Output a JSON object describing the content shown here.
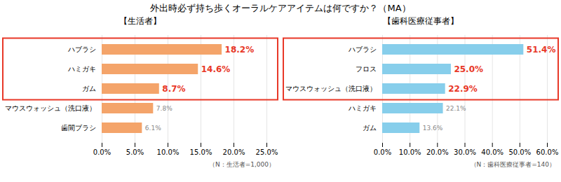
{
  "title": "外出時必ず持ち歩くオーラルケアアイテムは何ですか？（MA）",
  "chart_data": [
    {
      "type": "bar",
      "orientation": "horizontal",
      "title": "【生活者】",
      "categories": [
        "ハブラシ",
        "ハミガキ",
        "ガム",
        "マウスウォッシュ（洗口液）",
        "歯間ブラシ"
      ],
      "values": [
        18.2,
        14.6,
        8.7,
        7.8,
        6.1
      ],
      "value_labels": [
        "18.2%",
        "14.6%",
        "8.7%",
        "7.8%",
        "6.1%"
      ],
      "highlighted": [
        true,
        true,
        true,
        false,
        false
      ],
      "highlight_color": "#E83828",
      "color": "#F4A46A",
      "xlim": [
        0,
        25
      ],
      "xticks": [
        {
          "value": 0,
          "label": "0.0%"
        },
        {
          "value": 5,
          "label": "5.0%"
        },
        {
          "value": 10,
          "label": "10.0%"
        },
        {
          "value": 15,
          "label": "15.0%"
        },
        {
          "value": 20,
          "label": "20.0%"
        },
        {
          "value": 25,
          "label": "25.0%"
        }
      ],
      "grid": true,
      "data_labels": true,
      "annotations": [
        "（N：生活者=1,000）"
      ]
    },
    {
      "type": "bar",
      "orientation": "horizontal",
      "title": "【歯科医療従事者】",
      "categories": [
        "ハブラシ",
        "フロス",
        "マウスウォッシュ（洗口液）",
        "ハミガキ",
        "ガム"
      ],
      "values": [
        51.4,
        25.0,
        22.9,
        22.1,
        13.6
      ],
      "value_labels": [
        "51.4%",
        "25.0%",
        "22.9%",
        "22.1%",
        "13.6%"
      ],
      "highlighted": [
        true,
        true,
        true,
        false,
        false
      ],
      "highlight_color": "#E83828",
      "color": "#87CEEB",
      "xlim": [
        0,
        60
      ],
      "xticks": [
        {
          "value": 0,
          "label": "0.0%"
        },
        {
          "value": 10,
          "label": "10.0%"
        },
        {
          "value": 20,
          "label": "20.0%"
        },
        {
          "value": 30,
          "label": "30.0%"
        },
        {
          "value": 40,
          "label": "40.0%"
        },
        {
          "value": 50,
          "label": "50.0%"
        },
        {
          "value": 60,
          "label": "60.0%"
        }
      ],
      "grid": true,
      "data_labels": true,
      "annotations": [
        "（N：歯科医療従事者=140）"
      ]
    }
  ]
}
